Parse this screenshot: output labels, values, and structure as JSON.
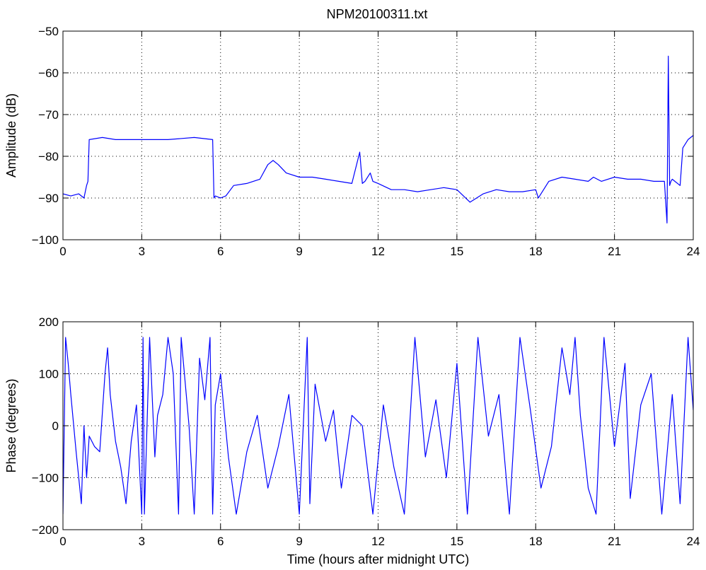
{
  "figure": {
    "title": "NPM20100311.txt"
  },
  "chart_data": [
    {
      "type": "line",
      "title": "NPM20100311.txt",
      "xlabel": "",
      "ylabel": "Amplitude (dB)",
      "xlim": [
        0,
        24
      ],
      "ylim": [
        -100,
        -50
      ],
      "xticks": [
        "0",
        "3",
        "6",
        "9",
        "12",
        "15",
        "18",
        "21",
        "24"
      ],
      "yticks": [
        "−50",
        "−60",
        "−70",
        "−80",
        "−90",
        "−100"
      ],
      "xtick_values": [
        0,
        3,
        6,
        9,
        12,
        15,
        18,
        21,
        24
      ],
      "ytick_values": [
        -50,
        -60,
        -70,
        -80,
        -90,
        -100
      ],
      "grid": true,
      "line_color": "#0000ff",
      "series": [
        {
          "x": [
            0,
            0.3,
            0.6,
            0.8,
            0.9,
            0.95,
            1.0,
            1.5,
            2.0,
            3.0,
            4.0,
            5.0,
            5.7,
            5.75,
            5.8,
            6.0,
            6.2,
            6.5,
            7.0,
            7.5,
            7.8,
            8.0,
            8.2,
            8.5,
            9.0,
            9.5,
            10.0,
            10.5,
            11.0,
            11.3,
            11.4,
            11.5,
            11.7,
            11.8,
            12.0,
            12.5,
            13.0,
            13.5,
            14.0,
            14.5,
            15.0,
            15.5,
            16.0,
            16.5,
            17.0,
            17.5,
            18.0,
            18.1,
            18.5,
            19.0,
            19.5,
            20.0,
            20.2,
            20.5,
            21.0,
            21.5,
            22.0,
            22.5,
            22.9,
            23.0,
            23.05,
            23.1,
            23.15,
            23.2,
            23.3,
            23.5,
            23.6,
            23.8,
            24.0
          ],
          "values": [
            -89,
            -89.5,
            -89,
            -90,
            -87,
            -86,
            -76,
            -75.5,
            -76,
            -76,
            -76,
            -75.5,
            -76,
            -90,
            -89.5,
            -90,
            -89.5,
            -87,
            -86.5,
            -85.5,
            -82,
            -81,
            -82,
            -84,
            -85,
            -85,
            -85.5,
            -86,
            -86.5,
            -79,
            -86.5,
            -86,
            -84,
            -86,
            -86.5,
            -88,
            -88,
            -88.5,
            -88,
            -87.5,
            -88,
            -91,
            -89,
            -88,
            -88.5,
            -88.5,
            -88,
            -90,
            -86,
            -85,
            -85.5,
            -86,
            -85,
            -86,
            -85,
            -85.5,
            -85.5,
            -86,
            -86,
            -96,
            -56,
            -87,
            -86,
            -85.5,
            -86,
            -87,
            -78,
            -76,
            -75
          ]
        }
      ]
    },
    {
      "type": "line",
      "title": "",
      "xlabel": "Time (hours after midnight UTC)",
      "ylabel": "Phase (degrees)",
      "xlim": [
        0,
        24
      ],
      "ylim": [
        -200,
        200
      ],
      "xticks": [
        "0",
        "3",
        "6",
        "9",
        "12",
        "15",
        "18",
        "21",
        "24"
      ],
      "yticks": [
        "200",
        "100",
        "0",
        "−100",
        "−200"
      ],
      "xtick_values": [
        0,
        3,
        6,
        9,
        12,
        15,
        18,
        21,
        24
      ],
      "ytick_values": [
        200,
        100,
        0,
        -100,
        -200
      ],
      "grid": true,
      "line_color": "#0000ff",
      "series": [
        {
          "x": [
            0,
            0.1,
            0.2,
            0.3,
            0.5,
            0.7,
            0.8,
            0.9,
            1.0,
            1.2,
            1.4,
            1.6,
            1.7,
            1.8,
            2.0,
            2.2,
            2.4,
            2.6,
            2.8,
            3.0,
            3.05,
            3.1,
            3.3,
            3.5,
            3.6,
            3.8,
            4.0,
            4.2,
            4.4,
            4.5,
            4.8,
            5.0,
            5.2,
            5.4,
            5.6,
            5.7,
            5.8,
            6.0,
            6.3,
            6.6,
            7.0,
            7.4,
            7.8,
            8.2,
            8.6,
            9.0,
            9.3,
            9.4,
            9.6,
            10.0,
            10.3,
            10.6,
            11.0,
            11.4,
            11.8,
            12.2,
            12.6,
            13.0,
            13.4,
            13.8,
            14.2,
            14.6,
            15.0,
            15.4,
            15.8,
            16.2,
            16.6,
            17.0,
            17.4,
            17.8,
            18.2,
            18.6,
            19.0,
            19.3,
            19.5,
            19.7,
            20.0,
            20.3,
            20.6,
            21.0,
            21.4,
            21.6,
            22.0,
            22.4,
            22.8,
            23.2,
            23.5,
            23.8,
            24.0
          ],
          "values": [
            -170,
            170,
            120,
            60,
            -50,
            -150,
            0,
            -100,
            -20,
            -40,
            -50,
            100,
            150,
            60,
            -30,
            -80,
            -150,
            -30,
            40,
            -170,
            170,
            -170,
            170,
            -60,
            20,
            60,
            170,
            100,
            -170,
            170,
            0,
            -170,
            130,
            50,
            170,
            -170,
            40,
            100,
            -60,
            -170,
            -50,
            20,
            -120,
            -40,
            60,
            -170,
            170,
            -150,
            80,
            -30,
            30,
            -120,
            20,
            0,
            -170,
            40,
            -80,
            -170,
            170,
            -60,
            50,
            -100,
            120,
            -170,
            170,
            -20,
            60,
            -170,
            170,
            30,
            -120,
            -40,
            150,
            60,
            170,
            20,
            -120,
            -170,
            170,
            -40,
            120,
            -140,
            40,
            100,
            -170,
            60,
            -150,
            170,
            30
          ]
        }
      ]
    }
  ]
}
